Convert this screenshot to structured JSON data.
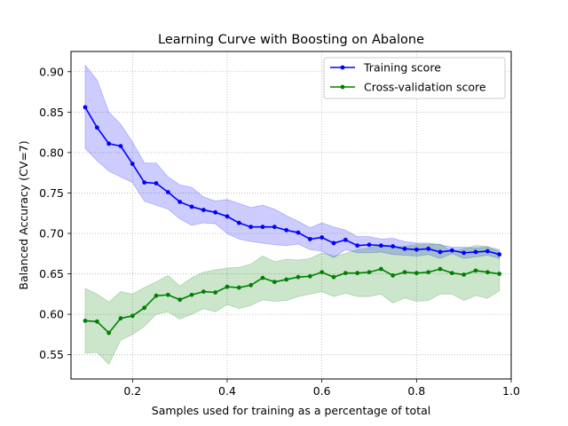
{
  "chart_data": {
    "type": "line",
    "title": "Learning Curve with Boosting on Abalone",
    "xlabel": "Samples used for training as a percentage of total",
    "ylabel": "Balanced Accuracy (CV=7)",
    "xlim": [
      0.07,
      1.0
    ],
    "ylim": [
      0.52,
      0.925
    ],
    "xticks": [
      0.2,
      0.4,
      0.6,
      0.8,
      1.0
    ],
    "xtick_labels": [
      "0.2",
      "0.4",
      "0.6",
      "0.8",
      "1.0"
    ],
    "yticks": [
      0.55,
      0.6,
      0.65,
      0.7,
      0.75,
      0.8,
      0.85,
      0.9
    ],
    "ytick_labels": [
      "0.55",
      "0.60",
      "0.65",
      "0.70",
      "0.75",
      "0.80",
      "0.85",
      "0.90"
    ],
    "grid": true,
    "legend_position": "top-right",
    "x": [
      0.1,
      0.125,
      0.15,
      0.175,
      0.2,
      0.225,
      0.25,
      0.275,
      0.3,
      0.325,
      0.35,
      0.375,
      0.4,
      0.425,
      0.45,
      0.475,
      0.5,
      0.525,
      0.55,
      0.575,
      0.6,
      0.625,
      0.65,
      0.675,
      0.7,
      0.725,
      0.75,
      0.775,
      0.8,
      0.825,
      0.85,
      0.875,
      0.9,
      0.925,
      0.95,
      0.975
    ],
    "series": [
      {
        "name": "Training score",
        "color": "#0000ff",
        "fill_color": "#0000ff",
        "values": [
          0.856,
          0.831,
          0.811,
          0.808,
          0.786,
          0.763,
          0.762,
          0.751,
          0.739,
          0.733,
          0.729,
          0.726,
          0.721,
          0.713,
          0.708,
          0.708,
          0.708,
          0.704,
          0.701,
          0.693,
          0.695,
          0.688,
          0.692,
          0.685,
          0.686,
          0.685,
          0.684,
          0.681,
          0.68,
          0.681,
          0.677,
          0.679,
          0.676,
          0.677,
          0.678,
          0.674
        ],
        "upper": [
          0.908,
          0.89,
          0.85,
          0.835,
          0.813,
          0.787,
          0.787,
          0.77,
          0.76,
          0.757,
          0.745,
          0.74,
          0.742,
          0.737,
          0.732,
          0.735,
          0.73,
          0.722,
          0.715,
          0.707,
          0.713,
          0.708,
          0.704,
          0.696,
          0.696,
          0.693,
          0.694,
          0.69,
          0.688,
          0.688,
          0.686,
          0.683,
          0.683,
          0.682,
          0.683,
          0.68
        ],
        "lower": [
          0.805,
          0.79,
          0.777,
          0.77,
          0.763,
          0.74,
          0.735,
          0.73,
          0.718,
          0.71,
          0.713,
          0.712,
          0.7,
          0.693,
          0.69,
          0.688,
          0.686,
          0.685,
          0.687,
          0.68,
          0.678,
          0.67,
          0.68,
          0.676,
          0.676,
          0.677,
          0.674,
          0.673,
          0.672,
          0.674,
          0.669,
          0.675,
          0.669,
          0.671,
          0.673,
          0.669
        ]
      },
      {
        "name": "Cross-validation score",
        "color": "#008000",
        "fill_color": "#008000",
        "values": [
          0.592,
          0.591,
          0.577,
          0.595,
          0.598,
          0.608,
          0.623,
          0.624,
          0.618,
          0.624,
          0.628,
          0.627,
          0.634,
          0.633,
          0.636,
          0.645,
          0.64,
          0.643,
          0.646,
          0.647,
          0.652,
          0.646,
          0.651,
          0.651,
          0.652,
          0.656,
          0.648,
          0.652,
          0.651,
          0.652,
          0.656,
          0.651,
          0.649,
          0.654,
          0.652,
          0.65
        ],
        "upper": [
          0.632,
          0.625,
          0.615,
          0.628,
          0.625,
          0.633,
          0.64,
          0.648,
          0.635,
          0.645,
          0.652,
          0.655,
          0.657,
          0.658,
          0.662,
          0.672,
          0.665,
          0.668,
          0.667,
          0.669,
          0.676,
          0.672,
          0.675,
          0.68,
          0.682,
          0.686,
          0.683,
          0.684,
          0.686,
          0.686,
          0.687,
          0.677,
          0.681,
          0.685,
          0.684,
          0.677
        ],
        "lower": [
          0.552,
          0.553,
          0.538,
          0.568,
          0.575,
          0.585,
          0.6,
          0.603,
          0.594,
          0.6,
          0.607,
          0.603,
          0.612,
          0.607,
          0.611,
          0.618,
          0.616,
          0.617,
          0.622,
          0.625,
          0.628,
          0.622,
          0.626,
          0.622,
          0.622,
          0.625,
          0.614,
          0.62,
          0.616,
          0.617,
          0.625,
          0.625,
          0.617,
          0.623,
          0.62,
          0.629
        ]
      }
    ]
  }
}
